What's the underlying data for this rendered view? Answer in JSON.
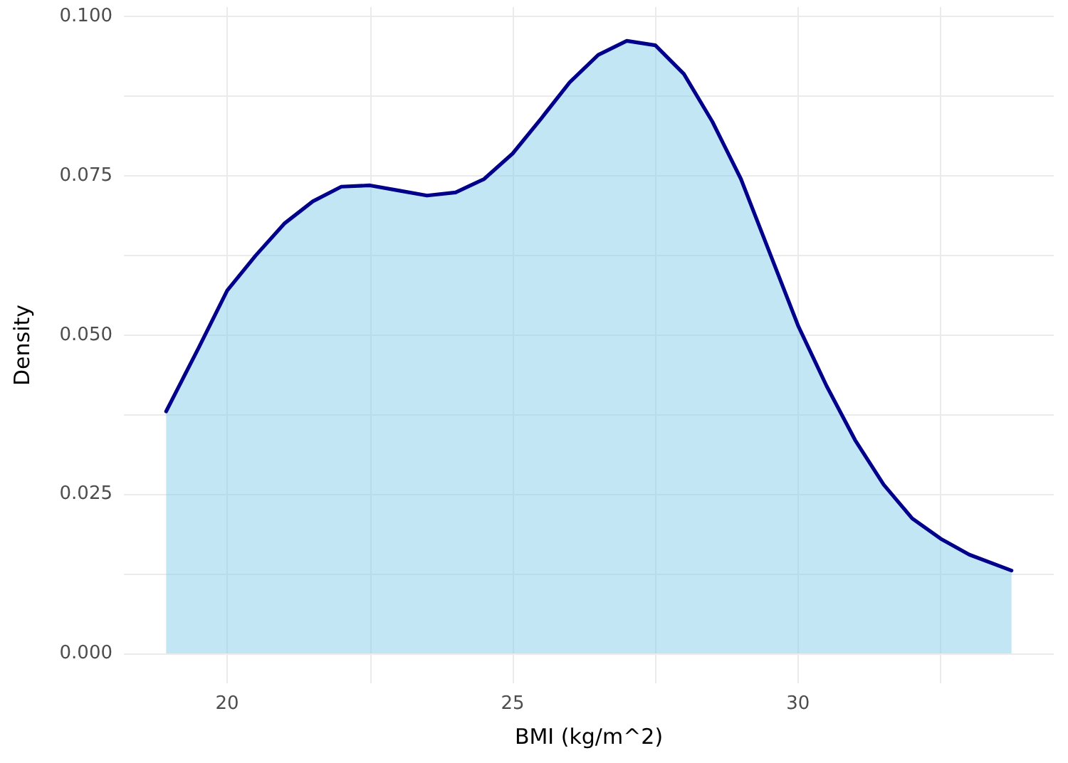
{
  "chart_data": {
    "type": "area",
    "xlabel": "BMI (kg/m^2)",
    "ylabel": "Density",
    "series": [
      {
        "color": "#00008b",
        "x": [
          18.93,
          19.5,
          20,
          20.5,
          21,
          21.5,
          22,
          22.5,
          23,
          23.5,
          24,
          24.5,
          25,
          25.5,
          26,
          26.5,
          27,
          27.5,
          28,
          28.5,
          29,
          29.5,
          30,
          30.5,
          31,
          31.5,
          32,
          32.5,
          33,
          33.74
        ],
        "values": [
          0.038,
          0.048,
          0.057,
          0.0625,
          0.0675,
          0.071,
          0.0733,
          0.0735,
          0.0727,
          0.0719,
          0.0724,
          0.0745,
          0.0785,
          0.084,
          0.0897,
          0.094,
          0.0962,
          0.0955,
          0.091,
          0.0835,
          0.0745,
          0.063,
          0.0515,
          0.042,
          0.0335,
          0.0265,
          0.0212,
          0.018,
          0.0155,
          0.013
        ]
      }
    ],
    "xlim": [
      18.19,
      34.48
    ],
    "ylim": [
      -0.0047,
      0.1015
    ],
    "xticks": [
      20,
      {
        "value": 22.5,
        "label": null
      },
      25,
      {
        "value": 27.5,
        "label": null
      },
      30,
      {
        "value": 32.5,
        "label": null
      }
    ],
    "yticks": [
      {
        "value": 0,
        "label": "0.000"
      },
      {
        "value": 0.0125,
        "label": null
      },
      {
        "value": 0.025,
        "label": "0.025"
      },
      {
        "value": 0.0375,
        "label": null
      },
      {
        "value": 0.05,
        "label": "0.050"
      },
      {
        "value": 0.0625,
        "label": null
      },
      {
        "value": 0.075,
        "label": "0.075"
      },
      {
        "value": 0.0875,
        "label": null
      },
      {
        "value": 0.1,
        "label": "0.100"
      }
    ],
    "grid": true,
    "marker": "none",
    "line_style": "solid",
    "legend": false
  }
}
